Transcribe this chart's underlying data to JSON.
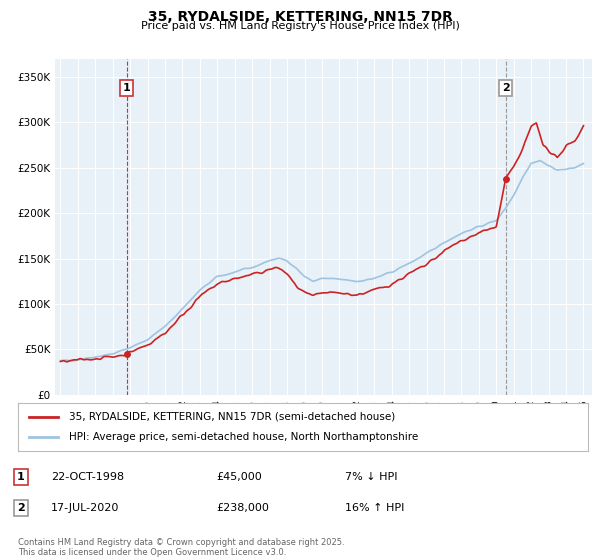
{
  "title": "35, RYDALSIDE, KETTERING, NN15 7DR",
  "subtitle": "Price paid vs. HM Land Registry's House Price Index (HPI)",
  "ylabel_ticks": [
    "£0",
    "£50K",
    "£100K",
    "£150K",
    "£200K",
    "£250K",
    "£300K",
    "£350K"
  ],
  "ytick_values": [
    0,
    50000,
    100000,
    150000,
    200000,
    250000,
    300000,
    350000
  ],
  "ylim": [
    0,
    370000
  ],
  "hpi_color": "#9ec4e0",
  "price_color": "#cc2222",
  "dashed_color_sale1": "#cc3333",
  "dashed_color_sale2": "#999999",
  "sale1": {
    "year": 1998.8,
    "price": 45000,
    "label": "1"
  },
  "sale2": {
    "year": 2020.54,
    "price": 238000,
    "label": "2"
  },
  "legend_line1": "35, RYDALSIDE, KETTERING, NN15 7DR (semi-detached house)",
  "legend_line2": "HPI: Average price, semi-detached house, North Northamptonshire",
  "table_rows": [
    {
      "num": "1",
      "date": "22-OCT-1998",
      "price": "£45,000",
      "hpi": "7% ↓ HPI"
    },
    {
      "num": "2",
      "date": "17-JUL-2020",
      "price": "£238,000",
      "hpi": "16% ↑ HPI"
    }
  ],
  "footnote": "Contains HM Land Registry data © Crown copyright and database right 2025.\nThis data is licensed under the Open Government Licence v3.0.",
  "background_color": "#ffffff",
  "plot_bg_color": "#e8f0f8",
  "grid_color": "#ffffff"
}
